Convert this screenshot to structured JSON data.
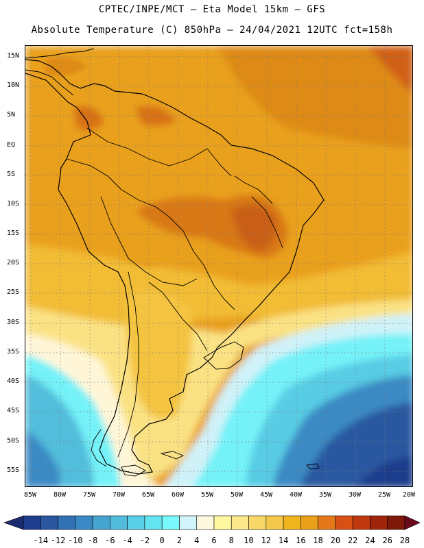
{
  "header": {
    "line1": "CPTEC/INPE/MCT –  Eta Model 15km – GFS",
    "line2": "Absolute Temperature (C) 850hPa – 24/04/2021 12UTC fct=158h"
  },
  "axes": {
    "latitudes": [
      "15N",
      "10N",
      "5N",
      "EQ",
      "5S",
      "10S",
      "15S",
      "20S",
      "25S",
      "30S",
      "35S",
      "40S",
      "45S",
      "50S",
      "55S"
    ],
    "longitudes": [
      "85W",
      "80W",
      "75W",
      "70W",
      "65W",
      "60W",
      "55W",
      "50W",
      "45W",
      "40W",
      "35W",
      "30W",
      "25W",
      "20W"
    ]
  },
  "legend": {
    "labels": [
      "-14",
      "-12",
      "-10",
      "-8",
      "-6",
      "-4",
      "-2",
      "0",
      "2",
      "4",
      "6",
      "8",
      "10",
      "12",
      "14",
      "16",
      "18",
      "20",
      "22",
      "24",
      "26",
      "28"
    ],
    "colors": [
      "#1e3c8c",
      "#2a56a0",
      "#3270b4",
      "#3a88c4",
      "#46a4d0",
      "#52bcdc",
      "#5ad0e6",
      "#64e4f0",
      "#78f8fa",
      "#d0f4fa",
      "#fff8e0",
      "#fff8a0",
      "#fae88a",
      "#f8d868",
      "#f4c84a",
      "#f0b41e",
      "#eaa018",
      "#e4781a",
      "#d85014",
      "#c0380e",
      "#a0240a",
      "#7e1808"
    ],
    "min_arrow_color": "#1a2c6e",
    "max_arrow_color": "#6a0a1c"
  }
}
